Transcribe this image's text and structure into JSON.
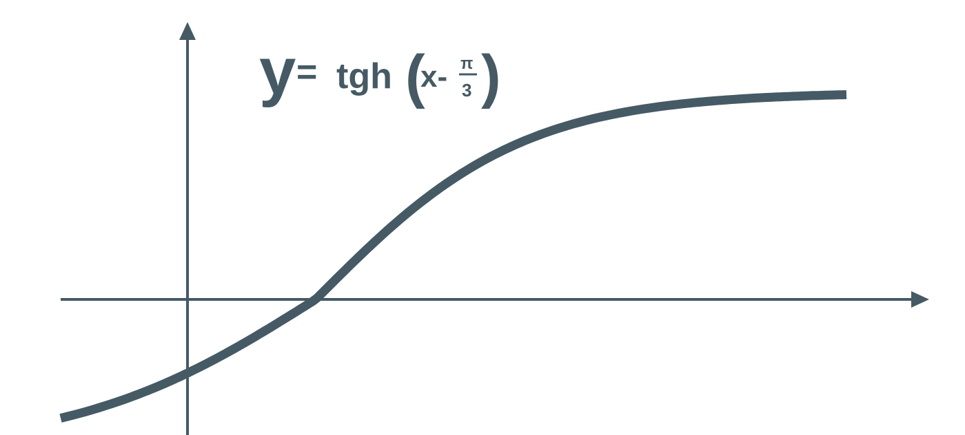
{
  "formula": {
    "lhs": "y",
    "eq": "=",
    "func": "tgh",
    "open": "(",
    "arg": "x-",
    "num": "π",
    "den": "3",
    "close": ")"
  }
}
